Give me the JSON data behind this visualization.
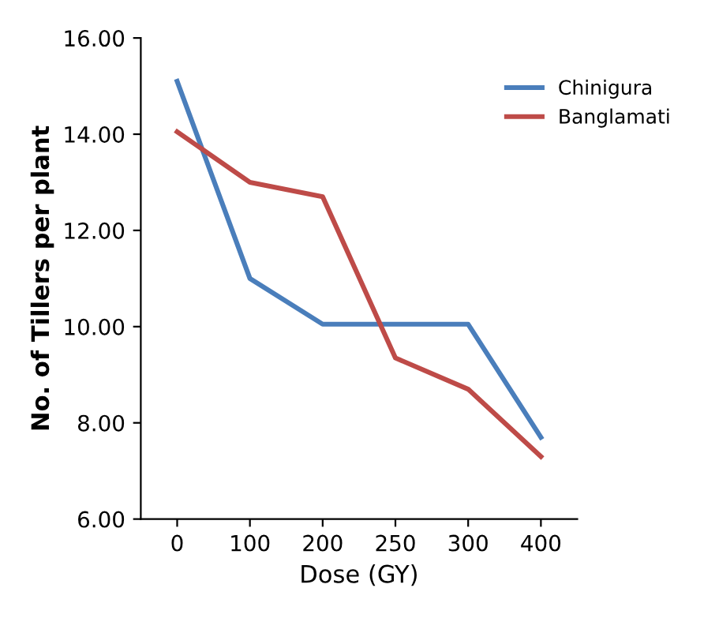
{
  "chart_data": {
    "type": "line",
    "xlabel": "Dose (GY)",
    "ylabel": "No. of Tillers per plant",
    "categories": [
      "0",
      "100",
      "200",
      "250",
      "300",
      "400"
    ],
    "series": [
      {
        "name": "Chinigura",
        "color": "#4a7ebb",
        "values": [
          15.1,
          11.0,
          10.05,
          10.05,
          10.05,
          7.7
        ]
      },
      {
        "name": "Banglamati",
        "color": "#be4b48",
        "values": [
          14.05,
          13.0,
          12.7,
          9.35,
          8.7,
          7.3
        ]
      }
    ],
    "ylim": [
      6,
      16
    ],
    "yticks": [
      {
        "value": 6,
        "label": "6.00"
      },
      {
        "value": 8,
        "label": "8.00"
      },
      {
        "value": 10,
        "label": "10.00"
      },
      {
        "value": 12,
        "label": "12.00"
      },
      {
        "value": 14,
        "label": "14.00"
      },
      {
        "value": 16,
        "label": "16.00"
      }
    ],
    "grid": false,
    "legend": "top right",
    "marker": "none",
    "line_style": "solid"
  }
}
